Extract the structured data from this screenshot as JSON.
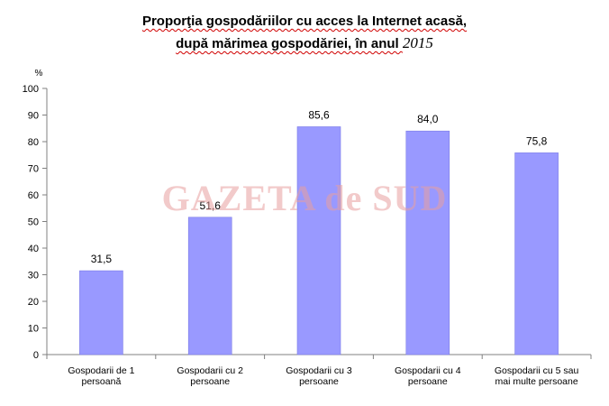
{
  "title_lines": {
    "line1": "Proporţia gospodăriilor cu acces la Internet acasă,",
    "line2_text": "după mărimea gospodăriei, în anul ",
    "line2_year": "2015"
  },
  "watermark": "GAZETA de SUD",
  "colors": {
    "bar": "#9999ff",
    "bar_stroke": "#7a7ae6",
    "axis": "#808080"
  },
  "chart_data": {
    "type": "bar",
    "title": "Proporţia gospodăriilor cu acces la Internet acasă, după mărimea gospodăriei, în anul 2015",
    "ylabel": "%",
    "xlabel": "",
    "ylim": [
      0,
      100
    ],
    "yticks": [
      0,
      10,
      20,
      30,
      40,
      50,
      60,
      70,
      80,
      90,
      100
    ],
    "grid": false,
    "legend": "none",
    "categories": [
      [
        "Gospodarii de 1",
        "persoană"
      ],
      [
        "Gospodarii cu 2",
        "persoane"
      ],
      [
        "Gospodarii cu 3",
        "persoane"
      ],
      [
        "Gospodarii cu 4",
        "persoane"
      ],
      [
        "Gospodarii cu 5 sau",
        "mai multe persoane"
      ]
    ],
    "values": [
      31.5,
      51.6,
      85.6,
      84.0,
      75.8
    ],
    "value_labels": [
      "31,5",
      "51,6",
      "85,6",
      "84,0",
      "75,8"
    ]
  }
}
